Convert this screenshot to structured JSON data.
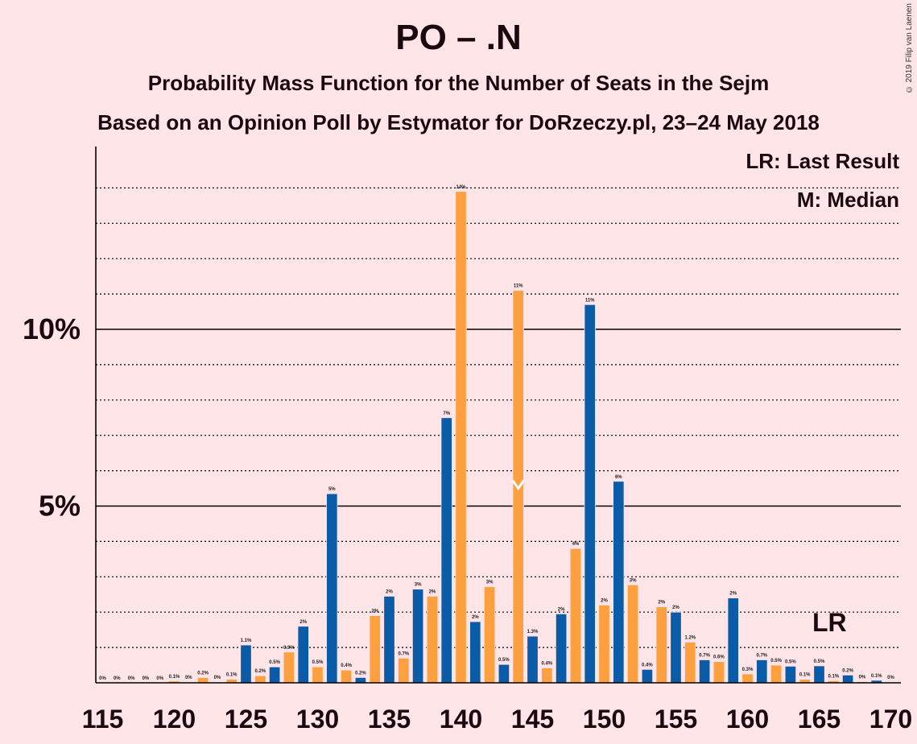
{
  "chart_data": {
    "type": "bar",
    "title": "PO – .N",
    "subtitle1": "Probability Mass Function for the Number of Seats in the Sejm",
    "subtitle2": "Based on an Opinion Poll by Estymator for DoRzeczy.pl, 23–24 May 2018",
    "copyright": "© 2019 Filip van Laenen",
    "legend": {
      "lr": "LR: Last Result",
      "median": "M: Median"
    },
    "lr_label": "LR",
    "median_marker": "M",
    "last_result_seat": 166,
    "median_seat": 144,
    "xlim": [
      115,
      170
    ],
    "ylim": [
      0,
      15
    ],
    "x_ticks": [
      "115",
      "120",
      "125",
      "130",
      "135",
      "140",
      "145",
      "150",
      "155",
      "160",
      "165",
      "170"
    ],
    "y_ticks": [
      {
        "value": 5,
        "label": "5%"
      },
      {
        "value": 10,
        "label": "10%"
      }
    ],
    "colors": {
      "blue": "#0A5CA8",
      "orange": "#FFA040",
      "background": "#FFE4E8"
    },
    "bars": [
      {
        "seat": 115,
        "value": 0.0,
        "label": "0%"
      },
      {
        "seat": 116,
        "value": 0.0,
        "label": "0%"
      },
      {
        "seat": 117,
        "value": 0.0,
        "label": "0%"
      },
      {
        "seat": 118,
        "value": 0.0,
        "label": "0%"
      },
      {
        "seat": 119,
        "value": 0.0,
        "label": "0%"
      },
      {
        "seat": 120,
        "value": 0.05,
        "label": "0.1%"
      },
      {
        "seat": 121,
        "value": 0.02,
        "label": "0%"
      },
      {
        "seat": 122,
        "value": 0.15,
        "label": "0.2%"
      },
      {
        "seat": 123,
        "value": 0.02,
        "label": "0%"
      },
      {
        "seat": 124,
        "value": 0.1,
        "label": "0.1%"
      },
      {
        "seat": 125,
        "value": 1.07,
        "label": "1.1%"
      },
      {
        "seat": 126,
        "value": 0.2,
        "label": "0.2%"
      },
      {
        "seat": 127,
        "value": 0.45,
        "label": "0.5%"
      },
      {
        "seat": 128,
        "value": 0.87,
        "label": "0.9%"
      },
      {
        "seat": 129,
        "value": 1.6,
        "label": "2%"
      },
      {
        "seat": 130,
        "value": 0.45,
        "label": "0.5%"
      },
      {
        "seat": 131,
        "value": 5.35,
        "label": "5%"
      },
      {
        "seat": 132,
        "value": 0.36,
        "label": "0.4%"
      },
      {
        "seat": 133,
        "value": 0.15,
        "label": "0.2%"
      },
      {
        "seat": 134,
        "value": 1.9,
        "label": "2%"
      },
      {
        "seat": 135,
        "value": 2.45,
        "label": "2%"
      },
      {
        "seat": 136,
        "value": 0.7,
        "label": "0.7%"
      },
      {
        "seat": 137,
        "value": 2.65,
        "label": "3%"
      },
      {
        "seat": 138,
        "value": 2.45,
        "label": "2%"
      },
      {
        "seat": 139,
        "value": 7.5,
        "label": "7%"
      },
      {
        "seat": 140,
        "value": 13.9,
        "label": "14%"
      },
      {
        "seat": 141,
        "value": 1.73,
        "label": "2%"
      },
      {
        "seat": 142,
        "value": 2.72,
        "label": "3%"
      },
      {
        "seat": 143,
        "value": 0.52,
        "label": "0.5%"
      },
      {
        "seat": 144,
        "value": 11.1,
        "label": "11%"
      },
      {
        "seat": 145,
        "value": 1.32,
        "label": "1.3%"
      },
      {
        "seat": 146,
        "value": 0.42,
        "label": "0.4%"
      },
      {
        "seat": 147,
        "value": 1.95,
        "label": "2%"
      },
      {
        "seat": 148,
        "value": 3.8,
        "label": "4%"
      },
      {
        "seat": 149,
        "value": 10.7,
        "label": "11%"
      },
      {
        "seat": 150,
        "value": 2.2,
        "label": "2%"
      },
      {
        "seat": 151,
        "value": 5.7,
        "label": "6%"
      },
      {
        "seat": 152,
        "value": 2.77,
        "label": "3%"
      },
      {
        "seat": 153,
        "value": 0.38,
        "label": "0.4%"
      },
      {
        "seat": 154,
        "value": 2.15,
        "label": "2%"
      },
      {
        "seat": 155,
        "value": 2.0,
        "label": "2%"
      },
      {
        "seat": 156,
        "value": 1.15,
        "label": "1.2%"
      },
      {
        "seat": 157,
        "value": 0.65,
        "label": "0.7%"
      },
      {
        "seat": 158,
        "value": 0.6,
        "label": "0.6%"
      },
      {
        "seat": 159,
        "value": 2.4,
        "label": "2%"
      },
      {
        "seat": 160,
        "value": 0.25,
        "label": "0.3%"
      },
      {
        "seat": 161,
        "value": 0.65,
        "label": "0.7%"
      },
      {
        "seat": 162,
        "value": 0.5,
        "label": "0.5%"
      },
      {
        "seat": 163,
        "value": 0.47,
        "label": "0.5%"
      },
      {
        "seat": 164,
        "value": 0.1,
        "label": "0.1%"
      },
      {
        "seat": 165,
        "value": 0.48,
        "label": "0.5%"
      },
      {
        "seat": 166,
        "value": 0.06,
        "label": "0.1%"
      },
      {
        "seat": 167,
        "value": 0.22,
        "label": "0.2%"
      },
      {
        "seat": 168,
        "value": 0.03,
        "label": "0%"
      },
      {
        "seat": 169,
        "value": 0.07,
        "label": "0.1%"
      },
      {
        "seat": 170,
        "value": 0.02,
        "label": "0%"
      }
    ]
  }
}
